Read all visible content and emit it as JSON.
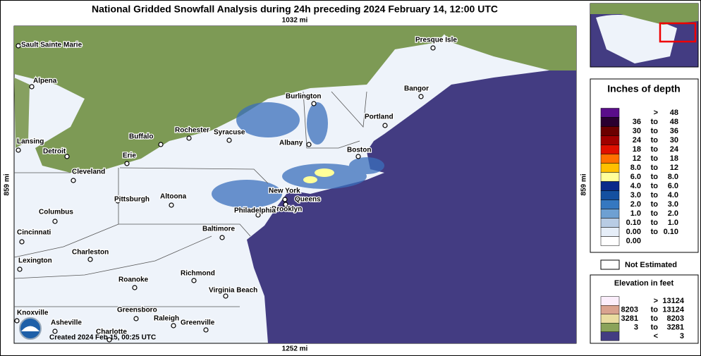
{
  "title": "National Gridded Snowfall Analysis during 24h preceding 2024 February 14, 12:00 UTC",
  "scale": {
    "top": "1032 mi",
    "bottom": "1252 mi",
    "left": "859 mi",
    "right": "859 mi"
  },
  "cities": [
    "Sault Sainte Marie",
    "Alpena",
    "Lansing",
    "Detroit",
    "Cleveland",
    "Erie",
    "Buffalo",
    "Rochester",
    "Syracuse",
    "Burlington",
    "Albany",
    "Presque Isle",
    "Bangor",
    "Portland",
    "Boston",
    "New York",
    "Queens",
    "Brooklyn",
    "Philadelphia",
    "Pittsburgh",
    "Altoona",
    "Columbus",
    "Cincinnati",
    "Baltimore",
    "Charleston",
    "Lexington",
    "Richmond",
    "Roanoke",
    "Virginia Beach",
    "Knoxville",
    "Greensboro",
    "Asheville",
    "Raleigh",
    "Greenville",
    "Charlotte"
  ],
  "created": "Created 2024 Feb 15, 00:25 UTC",
  "legend": {
    "title": "Inches of depth",
    "rows": [
      {
        "color": "#5a0d8a",
        "cells": [
          ">",
          "48"
        ]
      },
      {
        "color": "#2a0030",
        "cells": [
          "36",
          "to",
          "48"
        ]
      },
      {
        "color": "#6b0000",
        "cells": [
          "30",
          "to",
          "36"
        ]
      },
      {
        "color": "#a00000",
        "cells": [
          "24",
          "to",
          "30"
        ]
      },
      {
        "color": "#e01000",
        "cells": [
          "18",
          "to",
          "24"
        ]
      },
      {
        "color": "#ff7000",
        "cells": [
          "12",
          "to",
          "18"
        ]
      },
      {
        "color": "#ffc000",
        "cells": [
          "8.0",
          "to",
          "12"
        ]
      },
      {
        "color": "#ffff99",
        "cells": [
          "6.0",
          "to",
          "8.0"
        ]
      },
      {
        "color": "#0a2a8a",
        "cells": [
          "4.0",
          "to",
          "6.0"
        ]
      },
      {
        "color": "#1450a0",
        "cells": [
          "3.0",
          "to",
          "4.0"
        ]
      },
      {
        "color": "#3578c0",
        "cells": [
          "2.0",
          "to",
          "3.0"
        ]
      },
      {
        "color": "#6ea0d2",
        "cells": [
          "1.0",
          "to",
          "2.0"
        ]
      },
      {
        "color": "#b8cce4",
        "cells": [
          "0.10",
          "to",
          "1.0"
        ]
      },
      {
        "color": "#e6eef8",
        "cells": [
          "0.00",
          "to",
          "0.10"
        ]
      },
      {
        "color": "#ffffff",
        "cells": [
          "0.00"
        ]
      }
    ],
    "not_estimated": "Not Estimated"
  },
  "elevation": {
    "title": "Elevation in feet",
    "rows": [
      {
        "color": "#fbeefb",
        "cells": [
          ">",
          "13124"
        ]
      },
      {
        "color": "#d9a38f",
        "cells": [
          "8203",
          "to",
          "13124"
        ]
      },
      {
        "color": "#e9dca0",
        "cells": [
          "3281",
          "to",
          "8203"
        ]
      },
      {
        "color": "#8aa35a",
        "cells": [
          "3",
          "to",
          "3281"
        ]
      },
      {
        "color": "#433c82",
        "cells": [
          "<",
          "3"
        ]
      }
    ]
  }
}
